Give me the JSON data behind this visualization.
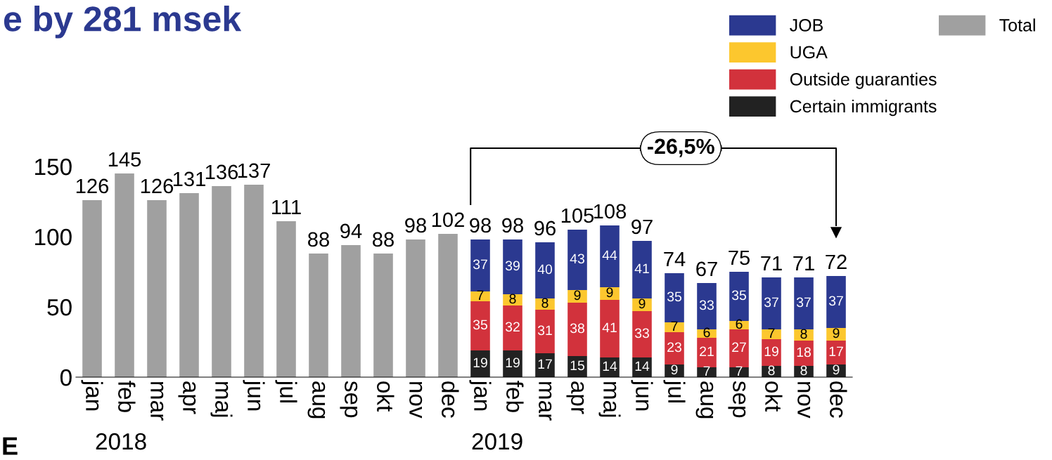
{
  "chart_data": {
    "type": "bar",
    "title": "e by 281 msek",
    "stacked": true,
    "data_labels": true,
    "legend": "top right",
    "grid": false,
    "categories": [
      "jan",
      "feb",
      "mar",
      "apr",
      "maj",
      "jun",
      "jul",
      "aug",
      "sep",
      "okt",
      "nov",
      "dec",
      "jan",
      "feb",
      "mar",
      "apr",
      "maj",
      "jun",
      "jul",
      "aug",
      "sep",
      "okt",
      "nov",
      "dec"
    ],
    "series": [
      {
        "name": "Total",
        "color": "#a0a0a0",
        "values": [
          126,
          145,
          126,
          131,
          136,
          137,
          111,
          88,
          94,
          88,
          98,
          102,
          null,
          null,
          null,
          null,
          null,
          null,
          null,
          null,
          null,
          null,
          null,
          null
        ]
      },
      {
        "name": "Certain immigrants",
        "color": "#222222",
        "values": [
          null,
          null,
          null,
          null,
          null,
          null,
          null,
          null,
          null,
          null,
          null,
          null,
          19,
          19,
          17,
          15,
          14,
          14,
          9,
          7,
          7,
          8,
          8,
          9
        ]
      },
      {
        "name": "Outside guaranties",
        "color": "#d2323c",
        "values": [
          null,
          null,
          null,
          null,
          null,
          null,
          null,
          null,
          null,
          null,
          null,
          null,
          35,
          32,
          31,
          38,
          41,
          33,
          23,
          21,
          27,
          19,
          18,
          17
        ]
      },
      {
        "name": "UGA",
        "color": "#fcc72e",
        "values": [
          null,
          null,
          null,
          null,
          null,
          null,
          null,
          null,
          null,
          null,
          null,
          null,
          7,
          8,
          8,
          9,
          9,
          9,
          7,
          6,
          6,
          7,
          8,
          9
        ]
      },
      {
        "name": "JOB",
        "color": "#2b3990",
        "values": [
          null,
          null,
          null,
          null,
          null,
          null,
          null,
          null,
          null,
          null,
          null,
          null,
          37,
          39,
          40,
          43,
          44,
          41,
          35,
          33,
          35,
          37,
          37,
          37
        ]
      }
    ],
    "totals": [
      null,
      null,
      null,
      null,
      null,
      null,
      null,
      null,
      null,
      null,
      null,
      null,
      "98",
      "98",
      "96",
      "105",
      "108",
      "97",
      "74",
      "67",
      "75",
      "71",
      "71",
      "72"
    ],
    "ylim": [
      0,
      150
    ],
    "yticks": [
      0,
      50,
      100,
      150
    ],
    "annotations": [
      "-26,5%",
      "2018",
      "2019",
      "E"
    ]
  }
}
